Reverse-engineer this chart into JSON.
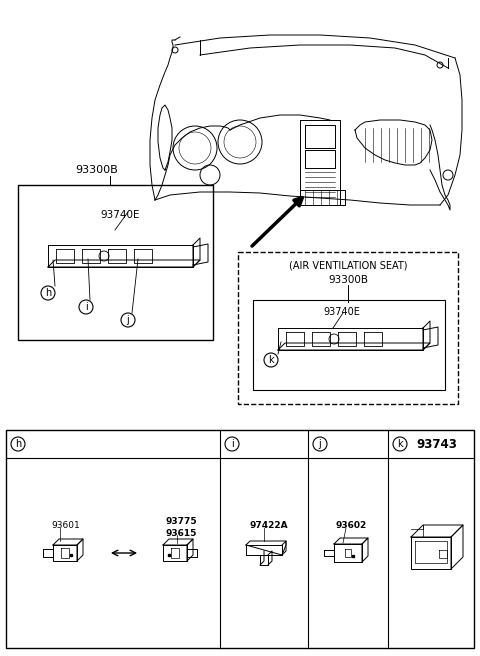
{
  "bg_color": "#ffffff",
  "line_color": "#000000",
  "figsize": [
    4.8,
    6.56
  ],
  "dpi": 100,
  "part_numbers": {
    "main_label1": "93300B",
    "main_label2": "93740E",
    "air_vent_title": "(AIR VENTILATION SEAT)",
    "air_vent_label": "93300B",
    "air_vent_sub": "93740E",
    "p93601": "93601",
    "p93775": "93775",
    "p93615": "93615",
    "p97422A": "97422A",
    "p93602": "93602",
    "p93743": "93743"
  }
}
